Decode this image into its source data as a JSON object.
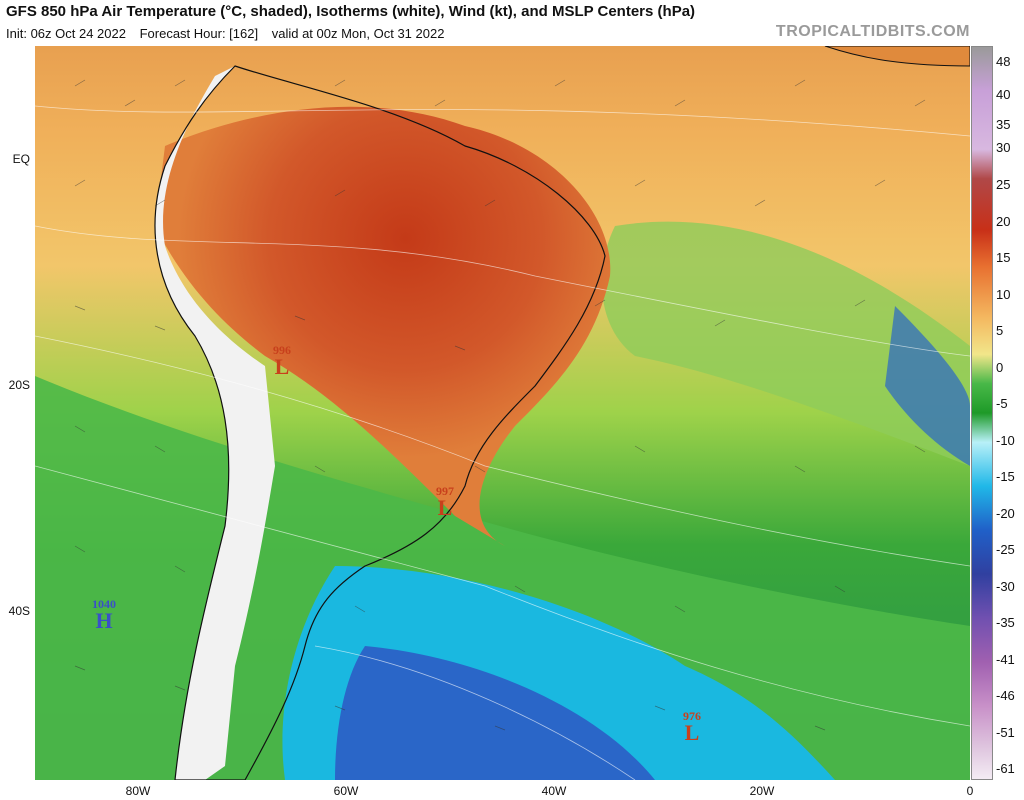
{
  "header": {
    "title": "GFS 850 hPa Air Temperature (°C, shaded), Isotherms (white), Wind (kt), and MSLP Centers (hPa)",
    "init": "Init: 06z Oct 24 2022",
    "forecast_hour": "Forecast Hour: [162]",
    "valid": "valid at 00z Mon, Oct 31 2022",
    "brand": "TROPICALTIDBITS.COM"
  },
  "axes": {
    "lat_labels": [
      "EQ",
      "20S",
      "40S"
    ],
    "lon_labels": [
      "80W",
      "60W",
      "40W",
      "20W",
      "0"
    ]
  },
  "colorbar": {
    "labels": [
      "48",
      "40",
      "35",
      "30",
      "25",
      "20",
      "15",
      "10",
      "5",
      "0",
      "-5",
      "-10",
      "-15",
      "-20",
      "-25",
      "-30",
      "-35",
      "-41",
      "-46",
      "-51",
      "-61"
    ]
  },
  "pressure_centers": [
    {
      "type": "L",
      "value": "996"
    },
    {
      "type": "L",
      "value": "997"
    },
    {
      "type": "H",
      "value": "1040"
    },
    {
      "type": "L",
      "value": "976"
    }
  ],
  "colors": {
    "hot": "#c0441c",
    "warm": "#e88a3c",
    "mild": "#f2c060",
    "cool_green": "#3aa83a",
    "cold_cyan": "#1ab8e0",
    "cold_blue": "#2a66c8",
    "terrain_white": "#f0f0f0"
  }
}
